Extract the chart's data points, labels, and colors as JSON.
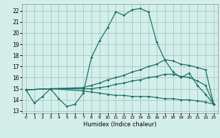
{
  "xlabel": "Humidex (Indice chaleur)",
  "xlim": [
    -0.5,
    23.5
  ],
  "ylim": [
    12.8,
    22.6
  ],
  "yticks": [
    13,
    14,
    15,
    16,
    17,
    18,
    19,
    20,
    21,
    22
  ],
  "xticks": [
    0,
    1,
    2,
    3,
    4,
    5,
    6,
    7,
    8,
    9,
    10,
    11,
    12,
    13,
    14,
    15,
    16,
    17,
    18,
    19,
    20,
    21,
    22,
    23
  ],
  "background_color": "#d4eeea",
  "grid_color": "#a0c8c4",
  "line_color": "#1a6e66",
  "line1_x": [
    0,
    1,
    2,
    3,
    4,
    5,
    6,
    7,
    8,
    9,
    10,
    11,
    12,
    13,
    14,
    15,
    16,
    17,
    18,
    19,
    20,
    21,
    22,
    23
  ],
  "line1_y": [
    14.9,
    13.7,
    14.3,
    15.0,
    14.1,
    13.4,
    13.6,
    14.6,
    17.8,
    19.3,
    20.5,
    21.9,
    21.6,
    22.1,
    22.2,
    21.9,
    19.2,
    17.6,
    16.5,
    16.0,
    16.4,
    15.3,
    14.5,
    13.6
  ],
  "line2_x": [
    0,
    3,
    7,
    8,
    9,
    10,
    11,
    12,
    13,
    14,
    15,
    16,
    17,
    18,
    19,
    20,
    21,
    22,
    23
  ],
  "line2_y": [
    14.9,
    15.0,
    15.1,
    15.3,
    15.5,
    15.8,
    16.0,
    16.2,
    16.5,
    16.7,
    17.0,
    17.2,
    17.6,
    17.5,
    17.2,
    17.1,
    16.9,
    16.7,
    13.6
  ],
  "line3_x": [
    0,
    3,
    7,
    8,
    9,
    10,
    11,
    12,
    13,
    14,
    15,
    16,
    17,
    18,
    19,
    20,
    21,
    22,
    23
  ],
  "line3_y": [
    14.9,
    15.0,
    15.0,
    15.0,
    15.1,
    15.2,
    15.4,
    15.5,
    15.7,
    15.8,
    16.0,
    16.1,
    16.3,
    16.3,
    16.1,
    16.0,
    15.7,
    15.3,
    13.6
  ],
  "line4_x": [
    0,
    3,
    7,
    8,
    9,
    10,
    11,
    12,
    13,
    14,
    15,
    16,
    17,
    18,
    19,
    20,
    21,
    22,
    23
  ],
  "line4_y": [
    14.9,
    15.0,
    14.8,
    14.7,
    14.6,
    14.5,
    14.4,
    14.4,
    14.3,
    14.3,
    14.3,
    14.2,
    14.1,
    14.1,
    14.0,
    14.0,
    13.9,
    13.8,
    13.6
  ]
}
